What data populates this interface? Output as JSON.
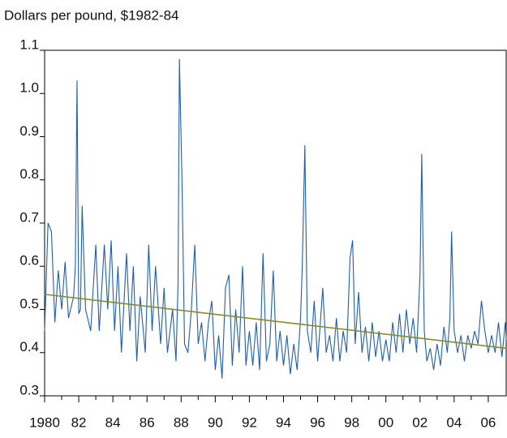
{
  "chart_data": {
    "type": "line",
    "title": "Dollars per pound, $1982-84",
    "xlim": [
      1980,
      2007.05
    ],
    "ylim": [
      0.3,
      1.1
    ],
    "yticks": [
      {
        "value": 1.1,
        "label": "1.1"
      },
      {
        "value": 1,
        "label": "1.0"
      },
      0.9,
      0.8,
      0.7,
      0.6,
      0.5,
      0.4,
      0.3
    ],
    "xticks": [
      1980,
      {
        "value": 1982,
        "label": "82"
      },
      {
        "value": 1984,
        "label": "84"
      },
      {
        "value": 1986,
        "label": "86"
      },
      {
        "value": 1988,
        "label": "88"
      },
      {
        "value": 1990,
        "label": "90"
      },
      {
        "value": 1992,
        "label": "92"
      },
      {
        "value": 1994,
        "label": "94"
      },
      {
        "value": 1996,
        "label": "96"
      },
      {
        "value": 1998,
        "label": "98"
      },
      {
        "value": 2000,
        "label": "00"
      },
      {
        "value": 2002,
        "label": "02"
      },
      {
        "value": 2004,
        "label": "04"
      },
      {
        "value": 2006,
        "label": "06"
      }
    ],
    "xminorticks": [
      1981,
      1983,
      1985,
      1987,
      1989,
      1991,
      1993,
      1995,
      1997,
      1999,
      2001,
      2003,
      2005
    ],
    "series": [
      {
        "color": "#1f5fa8",
        "x": [
          1980.0,
          1980.2,
          1980.4,
          1980.6,
          1980.8,
          1981.0,
          1981.2,
          1981.4,
          1981.7,
          1981.8,
          1981.9,
          1982.0,
          1982.1,
          1982.2,
          1982.4,
          1982.7,
          1983.0,
          1983.2,
          1983.5,
          1983.7,
          1983.9,
          1984.1,
          1984.3,
          1984.5,
          1984.8,
          1985.0,
          1985.2,
          1985.4,
          1985.6,
          1985.9,
          1986.1,
          1986.3,
          1986.5,
          1986.8,
          1987.0,
          1987.2,
          1987.5,
          1987.7,
          1987.82,
          1987.9,
          1988.05,
          1988.2,
          1988.4,
          1988.6,
          1988.8,
          1989.0,
          1989.2,
          1989.4,
          1989.6,
          1989.8,
          1990.0,
          1990.2,
          1990.4,
          1990.6,
          1990.8,
          1991.0,
          1991.2,
          1991.4,
          1991.6,
          1991.8,
          1992.0,
          1992.2,
          1992.4,
          1992.6,
          1992.8,
          1993.0,
          1993.2,
          1993.4,
          1993.6,
          1993.8,
          1994.0,
          1994.2,
          1994.4,
          1994.6,
          1994.8,
          1995.0,
          1995.1,
          1995.25,
          1995.4,
          1995.6,
          1995.8,
          1996.0,
          1996.3,
          1996.5,
          1996.7,
          1996.9,
          1997.1,
          1997.3,
          1997.5,
          1997.7,
          1997.9,
          1998.05,
          1998.2,
          1998.4,
          1998.6,
          1998.8,
          1999.0,
          1999.2,
          1999.4,
          1999.6,
          1999.8,
          2000.0,
          2000.2,
          2000.4,
          2000.6,
          2000.8,
          2001.0,
          2001.2,
          2001.4,
          2001.6,
          2001.8,
          2002.0,
          2002.1,
          2002.25,
          2002.4,
          2002.6,
          2002.8,
          2003.0,
          2003.2,
          2003.4,
          2003.6,
          2003.75,
          2003.85,
          2004.0,
          2004.2,
          2004.4,
          2004.6,
          2004.8,
          2005.0,
          2005.2,
          2005.4,
          2005.6,
          2005.8,
          2006.0,
          2006.2,
          2006.4,
          2006.6,
          2006.8,
          2007.0,
          2007.05
        ],
        "values": [
          0.45,
          0.7,
          0.68,
          0.47,
          0.59,
          0.5,
          0.61,
          0.48,
          0.53,
          0.6,
          1.03,
          0.49,
          0.5,
          0.74,
          0.5,
          0.45,
          0.65,
          0.45,
          0.65,
          0.5,
          0.66,
          0.45,
          0.6,
          0.4,
          0.63,
          0.45,
          0.6,
          0.38,
          0.53,
          0.4,
          0.65,
          0.45,
          0.6,
          0.42,
          0.55,
          0.4,
          0.5,
          0.38,
          0.56,
          1.08,
          0.8,
          0.42,
          0.4,
          0.5,
          0.65,
          0.42,
          0.47,
          0.38,
          0.47,
          0.52,
          0.36,
          0.44,
          0.34,
          0.55,
          0.58,
          0.37,
          0.5,
          0.4,
          0.6,
          0.37,
          0.45,
          0.37,
          0.47,
          0.36,
          0.63,
          0.38,
          0.42,
          0.59,
          0.38,
          0.45,
          0.37,
          0.44,
          0.35,
          0.42,
          0.36,
          0.48,
          0.6,
          0.88,
          0.45,
          0.4,
          0.52,
          0.38,
          0.55,
          0.4,
          0.44,
          0.38,
          0.48,
          0.38,
          0.45,
          0.4,
          0.62,
          0.66,
          0.42,
          0.54,
          0.4,
          0.46,
          0.38,
          0.47,
          0.39,
          0.45,
          0.38,
          0.43,
          0.38,
          0.47,
          0.4,
          0.49,
          0.4,
          0.5,
          0.42,
          0.48,
          0.4,
          0.58,
          0.86,
          0.45,
          0.38,
          0.41,
          0.36,
          0.42,
          0.37,
          0.46,
          0.4,
          0.48,
          0.68,
          0.45,
          0.4,
          0.44,
          0.38,
          0.44,
          0.41,
          0.45,
          0.42,
          0.52,
          0.45,
          0.4,
          0.44,
          0.4,
          0.47,
          0.39,
          0.47,
          0.43
        ]
      },
      {
        "color": "#8a8a2a",
        "x": [
          1980,
          2007.05
        ],
        "values": [
          0.535,
          0.41
        ]
      }
    ]
  }
}
